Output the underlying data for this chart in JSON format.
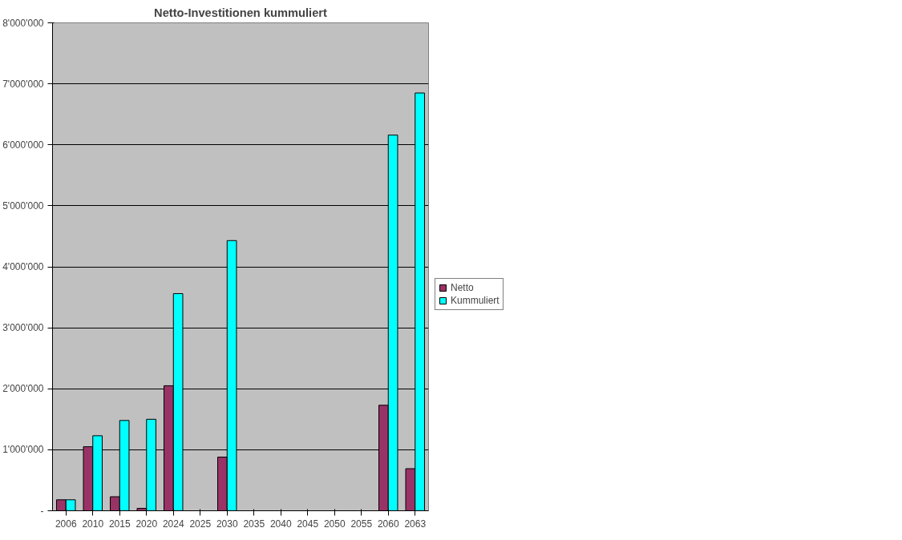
{
  "chart_data": {
    "type": "bar",
    "title": "Netto-Investitionen kummuliert",
    "categories": [
      "2006",
      "2010",
      "2015",
      "2020",
      "2024",
      "2025",
      "2030",
      "2035",
      "2040",
      "2045",
      "2050",
      "2055",
      "2060",
      "2063"
    ],
    "series": [
      {
        "name": "Netto",
        "color": "#993366",
        "values": [
          180000,
          1050000,
          230000,
          40000,
          2050000,
          null,
          880000,
          null,
          null,
          null,
          null,
          null,
          1730000,
          690000
        ]
      },
      {
        "name": "Kummuliert",
        "color": "#00ffff",
        "values": [
          180000,
          1230000,
          1480000,
          1500000,
          3560000,
          null,
          4430000,
          null,
          null,
          null,
          null,
          null,
          6160000,
          6850000
        ]
      }
    ],
    "ylim": [
      0,
      8000000
    ],
    "yticks": [
      {
        "value": 0,
        "label": "-"
      },
      {
        "value": 1000000,
        "label": "1'000'000"
      },
      {
        "value": 2000000,
        "label": "2'000'000"
      },
      {
        "value": 3000000,
        "label": "3'000'000"
      },
      {
        "value": 4000000,
        "label": "4'000'000"
      },
      {
        "value": 5000000,
        "label": "5'000'000"
      },
      {
        "value": 6000000,
        "label": "6'000'000"
      },
      {
        "value": 7000000,
        "label": "7'000'000"
      },
      {
        "value": 8000000,
        "label": "8'000'000"
      }
    ],
    "grid": "y",
    "legend": "right"
  }
}
